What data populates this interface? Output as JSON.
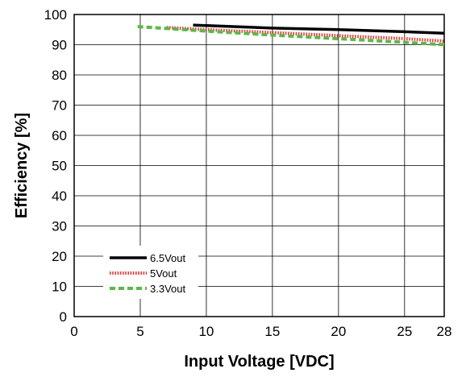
{
  "chart_data": {
    "type": "line",
    "title": "",
    "xlabel": "Input Voltage [VDC]",
    "ylabel": "Efficiency [%]",
    "xlim": [
      0,
      28
    ],
    "ylim": [
      0,
      100
    ],
    "xticks": [
      0,
      5,
      10,
      15,
      20,
      25,
      28
    ],
    "yticks": [
      0,
      10,
      20,
      30,
      40,
      50,
      60,
      70,
      80,
      90,
      100
    ],
    "grid": true,
    "legend_position": "bottom-left",
    "series": [
      {
        "name": "6.5Vout",
        "color": "#000000",
        "style": "solid",
        "x": [
          9,
          15,
          20,
          25,
          28
        ],
        "y": [
          96.5,
          95.5,
          95.0,
          94.3,
          93.8
        ]
      },
      {
        "name": "5Vout",
        "color": "#e03c3c",
        "style": "dotted",
        "x": [
          7,
          10,
          15,
          20,
          25,
          28
        ],
        "y": [
          95.7,
          95.0,
          94.0,
          93.0,
          92.0,
          91.2
        ]
      },
      {
        "name": "3.3Vout",
        "color": "#5cb848",
        "style": "dashed",
        "x": [
          4.8,
          10,
          15,
          20,
          25,
          28
        ],
        "y": [
          96.0,
          94.5,
          93.2,
          92.0,
          90.8,
          90.0
        ]
      }
    ]
  }
}
